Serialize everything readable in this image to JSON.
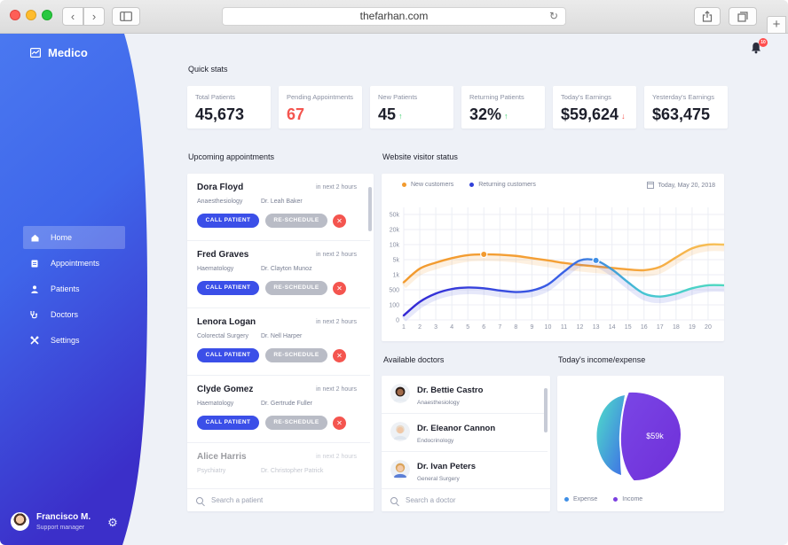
{
  "browser": {
    "url": "thefarhan.com",
    "plus": "+"
  },
  "app": {
    "name": "Medico"
  },
  "nav": {
    "items": [
      {
        "label": "Home",
        "icon": "home-icon",
        "active": true
      },
      {
        "label": "Appointments",
        "icon": "calendar-icon"
      },
      {
        "label": "Patients",
        "icon": "user-icon"
      },
      {
        "label": "Doctors",
        "icon": "stethoscope-icon"
      },
      {
        "label": "Settings",
        "icon": "tools-icon"
      }
    ]
  },
  "user": {
    "name": "Francisco M.",
    "role": "Support manager"
  },
  "notifications": {
    "count": "10"
  },
  "quick_stats": {
    "title": "Quick stats",
    "items": [
      {
        "label": "Total Patients",
        "value": "45,673"
      },
      {
        "label": "Pending Appointments",
        "value": "67"
      },
      {
        "label": "New Patients",
        "value": "45"
      },
      {
        "label": "Returning Patients",
        "value": "32%"
      },
      {
        "label": "Today's Earnings",
        "value": "$59,624"
      },
      {
        "label": "Yesterday's Earnings",
        "value": "$63,475"
      }
    ]
  },
  "appointments": {
    "title": "Upcoming appointments",
    "call_label": "CALL PATIENT",
    "reschedule_label": "RE-SCHEDULE",
    "search_placeholder": "Search a patient",
    "items": [
      {
        "name": "Dora Floyd",
        "when": "in next 2 hours",
        "dept": "Anaesthesiology",
        "doctor": "Dr. Leah Baker"
      },
      {
        "name": "Fred Graves",
        "when": "in next 2 hours",
        "dept": "Haematology",
        "doctor": "Dr. Clayton Munoz"
      },
      {
        "name": "Lenora Logan",
        "when": "in next 2 hours",
        "dept": "Colorectal Surgery",
        "doctor": "Dr. Nell Harper"
      },
      {
        "name": "Clyde Gomez",
        "when": "in next 2 hours",
        "dept": "Haematology",
        "doctor": "Dr. Gertrude Fuller"
      },
      {
        "name": "Alice Harris",
        "when": "in next 2 hours",
        "dept": "Psychiatry",
        "doctor": "Dr. Christopher Patrick"
      }
    ]
  },
  "visitor_status": {
    "title": "Website visitor status",
    "date": "Today, May 20, 2018"
  },
  "chart_data": {
    "type": "line",
    "x": [
      1,
      2,
      3,
      4,
      5,
      6,
      7,
      8,
      9,
      10,
      11,
      12,
      13,
      14,
      15,
      16,
      17,
      18,
      19,
      20
    ],
    "y_ticks": [
      "0",
      "100",
      "500",
      "1k",
      "5k",
      "10k",
      "20k",
      "50k"
    ],
    "series": [
      {
        "name": "New customers",
        "color": "#f29a2e",
        "values": [
          2.5,
          3.4,
          3.8,
          4.1,
          4.3,
          4.35,
          4.33,
          4.25,
          4.1,
          3.95,
          3.78,
          3.65,
          3.55,
          3.45,
          3.35,
          3.3,
          3.52,
          4.15,
          4.75,
          5.0
        ]
      },
      {
        "name": "Returning customers",
        "color": "#3140d8",
        "values": [
          0.3,
          1.2,
          1.75,
          2.05,
          2.15,
          2.1,
          1.95,
          1.85,
          1.95,
          2.35,
          3.2,
          3.95,
          3.95,
          3.35,
          2.5,
          1.75,
          1.55,
          1.75,
          2.1,
          2.3
        ]
      }
    ],
    "highlight_points": [
      {
        "series": "New customers",
        "x": 6,
        "y": 4.35
      },
      {
        "series": "Returning customers",
        "x": 13,
        "y": 3.95
      }
    ],
    "legend": "top-left",
    "grid": true
  },
  "doctors": {
    "title": "Available doctors",
    "search_placeholder": "Search a doctor",
    "items": [
      {
        "name": "Dr. Bettie Castro",
        "specialty": "Anaesthesiology"
      },
      {
        "name": "Dr. Eleanor Cannon",
        "specialty": "Endocrinology"
      },
      {
        "name": "Dr. Ivan Peters",
        "specialty": "General Surgery"
      }
    ]
  },
  "income": {
    "title": "Today's income/expense",
    "income_value": "$59k",
    "legend_expense": "Expense",
    "legend_income": "Income",
    "expense_color": "#4fd1c5",
    "income_color": "#7b3fe0"
  }
}
